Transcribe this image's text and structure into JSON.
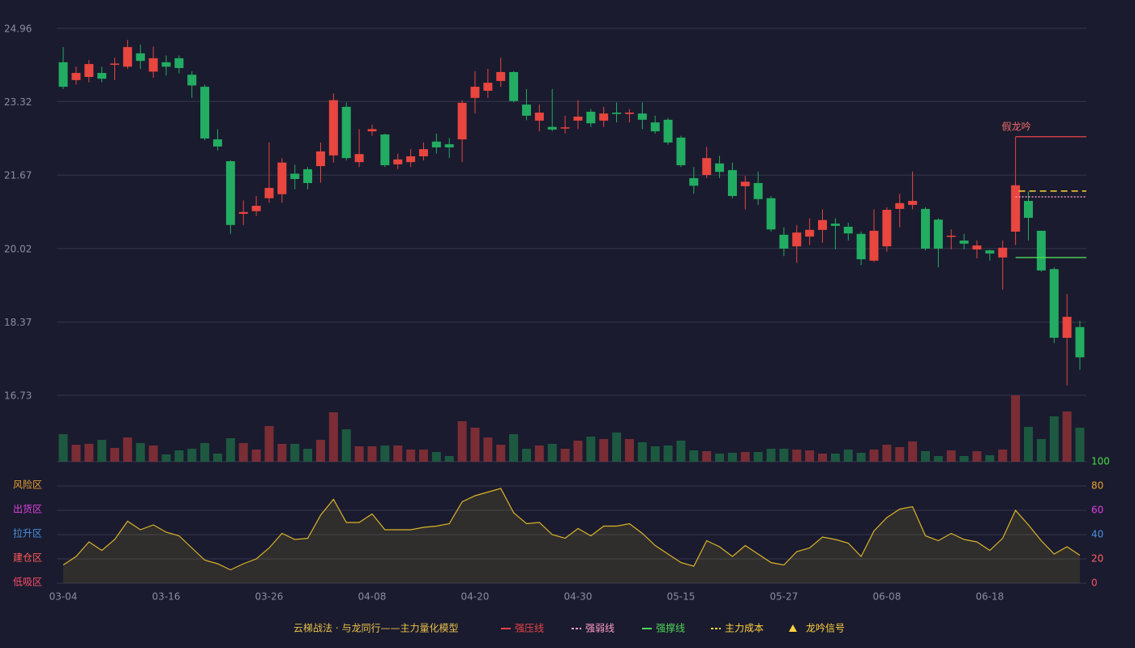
{
  "chart_data": {
    "type": "candlestick",
    "categories": [
      "03-04",
      null,
      null,
      null,
      null,
      null,
      null,
      null,
      "03-16",
      null,
      null,
      null,
      null,
      null,
      null,
      null,
      "03-26",
      null,
      null,
      null,
      null,
      null,
      null,
      null,
      "04-08",
      null,
      null,
      null,
      null,
      null,
      null,
      null,
      "04-20",
      null,
      null,
      null,
      null,
      null,
      null,
      null,
      "04-30",
      null,
      null,
      null,
      null,
      null,
      null,
      null,
      "05-15",
      null,
      null,
      null,
      null,
      null,
      null,
      null,
      "05-27",
      null,
      null,
      null,
      null,
      null,
      null,
      null,
      "06-08",
      null,
      null,
      null,
      null,
      null,
      null,
      null,
      "06-18",
      null,
      null,
      null,
      null,
      null,
      null,
      null
    ],
    "open": [
      24.2,
      23.8,
      23.87,
      23.96,
      24.16,
      24.1,
      24.4,
      23.99,
      24.2,
      24.29,
      23.92,
      23.65,
      22.47,
      21.98,
      20.8,
      20.86,
      21.15,
      21.24,
      21.7,
      21.8,
      21.87,
      22.11,
      23.2,
      21.96,
      22.65,
      22.58,
      21.91,
      21.96,
      22.09,
      22.42,
      22.36,
      22.47,
      23.4,
      23.56,
      23.78,
      23.98,
      23.25,
      22.89,
      22.75,
      22.72,
      22.89,
      23.09,
      22.89,
      23.07,
      23.04,
      23.05,
      22.85,
      22.91,
      22.51,
      21.6,
      21.67,
      21.93,
      21.78,
      21.42,
      21.49,
      21.15,
      20.33,
      20.07,
      20.29,
      20.44,
      20.58,
      20.51,
      20.35,
      19.75,
      20.07,
      20.91,
      21.0,
      20.91,
      20.67,
      20.29,
      20.2,
      20.0,
      19.98,
      19.82,
      20.4,
      21.09,
      20.42,
      19.56,
      18.02,
      18.26
    ],
    "high": [
      24.54,
      24.1,
      24.25,
      24.1,
      24.3,
      24.7,
      24.6,
      24.55,
      24.35,
      24.35,
      24.0,
      23.7,
      22.7,
      22.0,
      21.1,
      21.2,
      22.4,
      22.05,
      21.9,
      21.85,
      22.4,
      23.5,
      23.3,
      22.7,
      22.8,
      22.6,
      22.15,
      22.25,
      22.4,
      22.6,
      22.5,
      23.35,
      24.0,
      24.05,
      24.3,
      24.0,
      23.6,
      23.25,
      23.6,
      23.0,
      23.35,
      23.15,
      23.2,
      23.3,
      23.15,
      23.3,
      23.0,
      22.95,
      22.55,
      21.85,
      22.3,
      22.1,
      21.95,
      21.65,
      21.75,
      21.2,
      20.5,
      20.55,
      20.7,
      20.9,
      20.7,
      20.6,
      20.4,
      20.9,
      20.95,
      21.25,
      21.75,
      20.95,
      20.7,
      20.45,
      20.35,
      20.2,
      20.0,
      20.2,
      22.53,
      21.3,
      20.42,
      19.6,
      19.0,
      18.4
    ],
    "low": [
      23.6,
      23.7,
      23.75,
      23.75,
      23.8,
      24.05,
      24.05,
      23.85,
      23.9,
      23.95,
      23.4,
      22.45,
      22.22,
      20.35,
      20.55,
      20.75,
      21.05,
      21.05,
      21.35,
      21.35,
      21.5,
      21.95,
      22.0,
      21.85,
      22.55,
      21.85,
      21.8,
      21.85,
      22.0,
      22.15,
      22.05,
      21.96,
      23.05,
      23.4,
      23.65,
      23.3,
      22.9,
      22.65,
      22.65,
      22.6,
      22.7,
      22.75,
      22.75,
      22.85,
      22.85,
      22.7,
      22.6,
      22.35,
      21.85,
      21.25,
      21.6,
      21.6,
      21.15,
      20.9,
      21.0,
      20.4,
      19.85,
      19.7,
      20.1,
      20.15,
      20.0,
      20.2,
      19.65,
      19.72,
      19.95,
      20.5,
      20.9,
      19.98,
      19.6,
      20.0,
      20.0,
      19.8,
      19.75,
      19.1,
      20.1,
      20.2,
      19.5,
      17.9,
      16.95,
      17.3
    ],
    "close": [
      23.65,
      23.96,
      24.16,
      23.83,
      24.17,
      24.54,
      24.23,
      24.29,
      24.1,
      24.07,
      23.68,
      22.49,
      22.31,
      20.55,
      20.84,
      20.98,
      21.38,
      21.95,
      21.58,
      21.49,
      22.2,
      23.35,
      22.05,
      22.14,
      22.7,
      21.89,
      22.02,
      22.09,
      22.25,
      22.29,
      22.29,
      23.29,
      23.65,
      23.74,
      23.98,
      23.33,
      23.0,
      23.07,
      22.69,
      22.74,
      22.98,
      22.83,
      23.05,
      23.04,
      23.07,
      22.91,
      22.65,
      22.4,
      21.89,
      21.43,
      22.05,
      21.74,
      21.2,
      21.52,
      21.13,
      20.45,
      20.02,
      20.38,
      20.44,
      20.66,
      20.53,
      20.36,
      19.78,
      20.42,
      20.89,
      21.04,
      21.09,
      20.02,
      20.02,
      20.31,
      20.13,
      20.09,
      19.91,
      20.04,
      21.44,
      20.71,
      19.53,
      18.02,
      18.49,
      17.58
    ],
    "volume": [
      34,
      21,
      22,
      27,
      17,
      30,
      23,
      20,
      9,
      14,
      16,
      23,
      10,
      29,
      23,
      15,
      44,
      22,
      22,
      16,
      27,
      61,
      40,
      19,
      19,
      20,
      20,
      15,
      15,
      12,
      7,
      50,
      42,
      30,
      21,
      34,
      16,
      20,
      22,
      16,
      26,
      31,
      28,
      36,
      28,
      24,
      19,
      20,
      26,
      14,
      13,
      10,
      11,
      12,
      12,
      16,
      16,
      15,
      14,
      10,
      10,
      15,
      11,
      15,
      21,
      18,
      25,
      13,
      7,
      14,
      7,
      13,
      8,
      15,
      82,
      43,
      28,
      56,
      62,
      42
    ],
    "up_color": "#e8463f",
    "down_color": "#22ad62",
    "up_volume_color": "#7a2d35",
    "down_volume_color": "#1d5940",
    "ylim": [
      16.73,
      24.96
    ],
    "yticks": [
      16.73,
      18.37,
      20.02,
      21.67,
      23.32,
      24.96
    ],
    "grid": true,
    "levels": [
      {
        "name": "强压线",
        "value": 22.53,
        "color": "#e8434a",
        "dash": "solid",
        "from_index": 74
      },
      {
        "name": "强弱线",
        "value": 21.18,
        "color": "#ff9ec8",
        "dash": "dotted",
        "from_index": 74
      },
      {
        "name": "强撑线",
        "value": 19.82,
        "color": "#4fd65a",
        "dash": "solid",
        "from_index": 74
      },
      {
        "name": "主力成本",
        "value": 21.31,
        "color": "#ffd23f",
        "dash": "dashed",
        "from_index": 74
      }
    ],
    "signal": {
      "name": "龙吟信号",
      "label": "假龙吟",
      "index": 74,
      "color": "#ffd23f",
      "label_color": "#f06a6a"
    },
    "indicator": {
      "values": [
        15,
        22,
        34,
        27,
        36,
        51,
        44,
        48,
        42,
        39,
        29,
        19,
        16,
        11,
        16,
        20,
        29,
        41,
        36,
        37,
        56,
        69,
        50,
        50,
        57,
        44,
        44,
        44,
        46,
        47,
        49,
        67,
        72,
        75,
        78,
        58,
        49,
        50,
        40,
        37,
        45,
        39,
        47,
        47,
        49,
        41,
        31,
        24,
        17,
        14,
        35,
        30,
        22,
        31,
        24,
        17,
        15,
        26,
        29,
        38,
        36,
        33,
        22,
        43,
        54,
        61,
        63,
        39,
        35,
        41,
        36,
        34,
        27,
        37,
        60,
        48,
        35,
        24,
        30,
        23
      ],
      "color": "#d9b42a",
      "ylim": [
        0,
        100
      ],
      "yticks": [
        0,
        20,
        40,
        60,
        80,
        100
      ],
      "ytick_colors": [
        "#ff4d6a",
        "#ff6060",
        "#4a90e2",
        "#e040e0",
        "#e8a030",
        "#44dd44"
      ],
      "zones": [
        {
          "label": "风险区",
          "value": 80,
          "color": "#e8a030"
        },
        {
          "label": "出货区",
          "value": 60,
          "color": "#e040e0"
        },
        {
          "label": "拉升区",
          "value": 40,
          "color": "#4a90e2"
        },
        {
          "label": "建仓区",
          "value": 20,
          "color": "#ff5a5a"
        },
        {
          "label": "低吸区",
          "value": 0,
          "color": "#ff4d6a"
        }
      ]
    },
    "legend_title": "云梯战法 · 与龙同行——主力量化模型",
    "legend_title_color": "#e8c04a"
  }
}
